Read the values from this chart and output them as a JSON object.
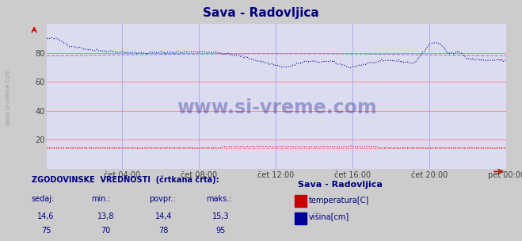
{
  "title": "Sava - Radovljica",
  "title_color": "#000080",
  "bg_color": "#cccccc",
  "plot_bg_color": "#dcdcf0",
  "grid_color_h": "#ff8888",
  "grid_color_v": "#aaaaee",
  "watermark_text": "www.si-vreme.com",
  "watermark_color": "#000080",
  "x_tick_labels": [
    "čet 04:00",
    "čet 08:00",
    "čet 12:00",
    "čet 16:00",
    "čet 20:00",
    "pet 00:00"
  ],
  "x_tick_positions": [
    0.167,
    0.333,
    0.5,
    0.667,
    0.833,
    1.0
  ],
  "ylim": [
    0,
    100
  ],
  "yticks": [
    20,
    40,
    60,
    80
  ],
  "temp_color": "#cc0000",
  "height_color": "#000099",
  "hist_height_color": "#8888cc",
  "hist_temp_color": "#ff8888",
  "sidebar_text": "www.si-vreme.com",
  "bottom_label1": "ZGODOVINSKE  VREDNOSTI  (črtkana črta):",
  "bottom_cols": [
    "sedaj:",
    "min.:",
    "povpr.:",
    "maks.:"
  ],
  "temp_values": [
    "14,6",
    "13,8",
    "14,4",
    "15,3"
  ],
  "height_values": [
    "75",
    "70",
    "78",
    "95"
  ],
  "legend_station": "Sava - Radovljica",
  "legend_temp": "temperatura[C]",
  "legend_height": "višina[cm]"
}
